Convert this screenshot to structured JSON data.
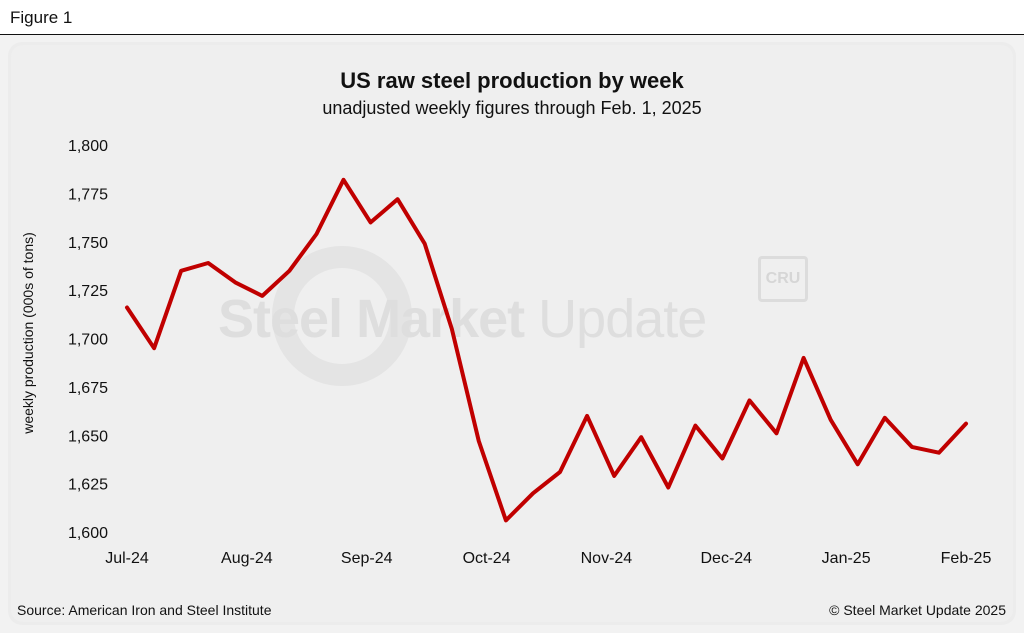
{
  "figure_label": "Figure 1",
  "footer": {
    "source": "Source: American Iron and Steel Institute",
    "copyright": "© Steel Market Update 2025"
  },
  "watermark": {
    "bold_text": "Steel Market",
    "light_text": "Update",
    "badge_text": "CRU"
  },
  "colors": {
    "line": "#c00000",
    "background": "#efefef"
  },
  "chart_data": {
    "type": "line",
    "title": "US raw steel production by week",
    "subtitle": "unadjusted weekly figures through Feb. 1, 2025",
    "xlabel": "",
    "ylabel": "weekly production (000s of tons)",
    "ylim": [
      1600,
      1800
    ],
    "yticks": [
      "1,600",
      "1,625",
      "1,650",
      "1,675",
      "1,700",
      "1,725",
      "1,750",
      "1,775",
      "1,800"
    ],
    "ytick_values": [
      1600,
      1625,
      1650,
      1675,
      1700,
      1725,
      1750,
      1775,
      1800
    ],
    "xticks": [
      "Jul-24",
      "Aug-24",
      "Sep-24",
      "Oct-24",
      "Nov-24",
      "Dec-24",
      "Jan-25",
      "Feb-25"
    ],
    "grid": false,
    "series": [
      {
        "name": "",
        "values": [
          1716,
          1695,
          1735,
          1739,
          1729,
          1722,
          1735,
          1754,
          1782,
          1760,
          1772,
          1749,
          1705,
          1647,
          1606,
          1620,
          1631,
          1660,
          1629,
          1649,
          1623,
          1655,
          1638,
          1668,
          1651,
          1690,
          1658,
          1635,
          1659,
          1644,
          1641,
          1656
        ]
      }
    ]
  }
}
